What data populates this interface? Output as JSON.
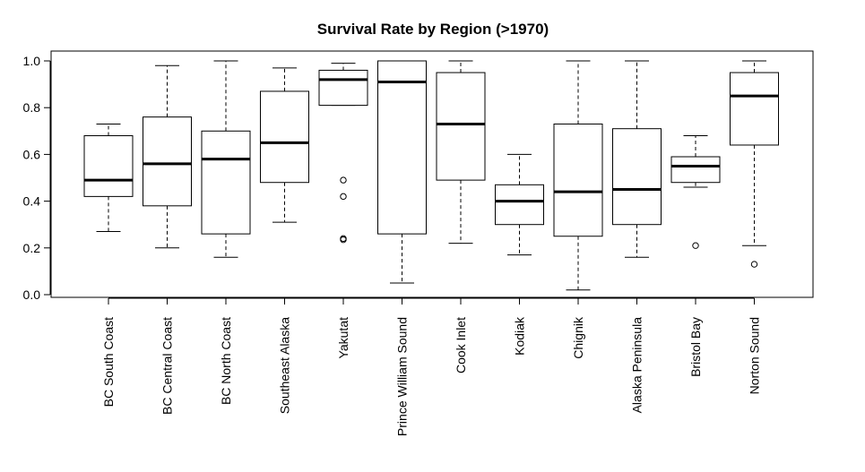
{
  "chart_data": {
    "type": "boxplot",
    "title": "Survival Rate by Region (>1970)",
    "xlabel": "",
    "ylabel": "",
    "ylim": [
      0,
      1
    ],
    "yticks": [
      "0.0",
      "0.2",
      "0.4",
      "0.6",
      "0.8",
      "1.0"
    ],
    "grid": false,
    "categories": [
      "BC South Coast",
      "BC Central Coast",
      "BC North Coast",
      "Southeast Alaska",
      "Yakutat",
      "Prince William Sound",
      "Cook Inlet",
      "Kodiak",
      "Chignik",
      "Alaska Peninsula",
      "Bristol Bay",
      "Norton Sound"
    ],
    "boxes": [
      {
        "whisker_low": 0.27,
        "q1": 0.42,
        "median": 0.49,
        "q3": 0.68,
        "whisker_high": 0.73,
        "outliers": []
      },
      {
        "whisker_low": 0.2,
        "q1": 0.38,
        "median": 0.56,
        "q3": 0.76,
        "whisker_high": 0.98,
        "outliers": []
      },
      {
        "whisker_low": 0.16,
        "q1": 0.26,
        "median": 0.58,
        "q3": 0.7,
        "whisker_high": 1.0,
        "outliers": []
      },
      {
        "whisker_low": 0.31,
        "q1": 0.48,
        "median": 0.65,
        "q3": 0.87,
        "whisker_high": 0.97,
        "outliers": []
      },
      {
        "whisker_low": 0.81,
        "q1": 0.81,
        "median": 0.92,
        "q3": 0.96,
        "whisker_high": 0.99,
        "outliers": [
          0.49,
          0.42,
          0.24,
          0.235
        ]
      },
      {
        "whisker_low": 0.05,
        "q1": 0.26,
        "median": 0.91,
        "q3": 1.0,
        "whisker_high": 1.0,
        "outliers": []
      },
      {
        "whisker_low": 0.22,
        "q1": 0.49,
        "median": 0.73,
        "q3": 0.95,
        "whisker_high": 1.0,
        "outliers": []
      },
      {
        "whisker_low": 0.17,
        "q1": 0.3,
        "median": 0.4,
        "q3": 0.47,
        "whisker_high": 0.6,
        "outliers": []
      },
      {
        "whisker_low": 0.02,
        "q1": 0.25,
        "median": 0.44,
        "q3": 0.73,
        "whisker_high": 1.0,
        "outliers": []
      },
      {
        "whisker_low": 0.16,
        "q1": 0.3,
        "median": 0.45,
        "q3": 0.71,
        "whisker_high": 1.0,
        "outliers": []
      },
      {
        "whisker_low": 0.46,
        "q1": 0.48,
        "median": 0.55,
        "q3": 0.59,
        "whisker_high": 0.68,
        "outliers": [
          0.21
        ]
      },
      {
        "whisker_low": 0.21,
        "q1": 0.64,
        "median": 0.85,
        "q3": 0.95,
        "whisker_high": 1.0,
        "outliers": [
          0.13
        ]
      }
    ]
  }
}
